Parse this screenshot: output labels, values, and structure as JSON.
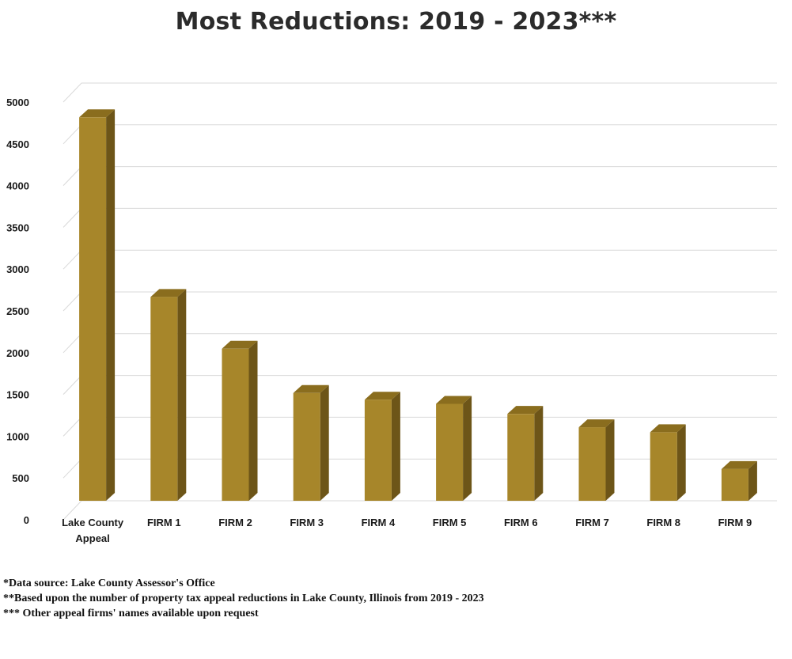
{
  "chart_data": {
    "type": "bar",
    "title": "Most Reductions: 2019 - 2023***",
    "xlabel": "",
    "ylabel": "",
    "ylim": [
      0,
      5000
    ],
    "yticks": [
      0,
      500,
      1000,
      1500,
      2000,
      2500,
      3000,
      3500,
      4000,
      4500,
      5000
    ],
    "grid": true,
    "style": "3d-column",
    "categories": [
      [
        "Lake County",
        "Appeal"
      ],
      [
        "FIRM 1"
      ],
      [
        "FIRM 2"
      ],
      [
        "FIRM 3"
      ],
      [
        "FIRM 4"
      ],
      [
        "FIRM 5"
      ],
      [
        "FIRM 6"
      ],
      [
        "FIRM 7"
      ],
      [
        "FIRM 8"
      ],
      [
        "FIRM 9"
      ]
    ],
    "values": [
      4590,
      2440,
      1820,
      1290,
      1210,
      1160,
      1040,
      880,
      820,
      380
    ],
    "colors": {
      "bar_front": "#A7862A",
      "bar_side": "#6D5518",
      "bar_top": "#8A6D1E",
      "grid": "#D9D9D9",
      "axis_text": "#1a1a1a"
    }
  },
  "footnotes": [
    "*Data source: Lake County  Assessor's Office",
    "**Based upon  the  number  of  property  tax appeal  reductions  in  Lake County, Illinois  from  2019 - 2023",
    "*** Other appeal firms'  names available upon  request"
  ]
}
